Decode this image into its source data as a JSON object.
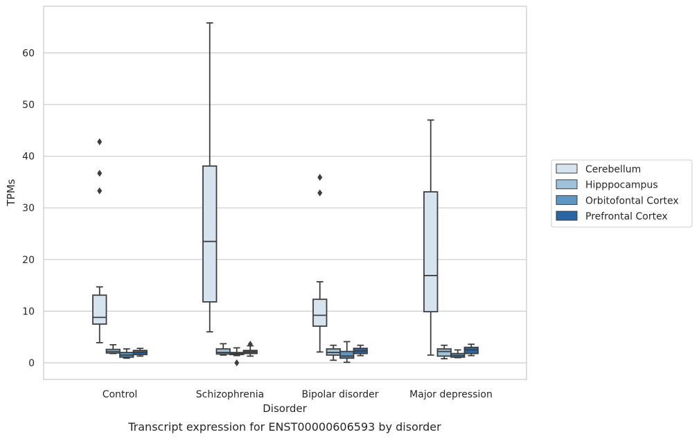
{
  "chart_data": {
    "type": "box",
    "title": "",
    "caption": "Transcript expression for ENST00000606593 by disorder",
    "xlabel": "Disorder",
    "ylabel": "TPMs",
    "ylim": [
      -3.2,
      69
    ],
    "yticks": [
      0,
      10,
      20,
      30,
      40,
      50,
      60
    ],
    "grid": "horizontal",
    "legend_position": "right",
    "categories": [
      "Control",
      "Schizophrenia",
      "Bipolar disorder",
      "Major depression"
    ],
    "series": [
      {
        "name": "Cerebellum",
        "color": "#d6e4f0",
        "boxes": [
          {
            "min": 3.9,
            "q1": 7.5,
            "median": 8.8,
            "q3": 13.1,
            "max": 14.7,
            "outliers": [
              33.3,
              36.7,
              42.8
            ]
          },
          {
            "min": 6.0,
            "q1": 11.8,
            "median": 23.5,
            "q3": 38.1,
            "max": 65.8,
            "outliers": []
          },
          {
            "min": 2.1,
            "q1": 7.1,
            "median": 9.2,
            "q3": 12.3,
            "max": 15.7,
            "outliers": [
              32.9,
              35.9
            ]
          },
          {
            "min": 1.5,
            "q1": 9.9,
            "median": 16.9,
            "q3": 33.1,
            "max": 47.0,
            "outliers": []
          }
        ]
      },
      {
        "name": "Hipppocampus",
        "color": "#9dc2da",
        "boxes": [
          {
            "min": 1.8,
            "q1": 1.9,
            "median": 2.2,
            "q3": 2.6,
            "max": 3.5,
            "outliers": []
          },
          {
            "min": 1.5,
            "q1": 1.7,
            "median": 2.0,
            "q3": 2.7,
            "max": 3.7,
            "outliers": []
          },
          {
            "min": 0.5,
            "q1": 1.5,
            "median": 2.0,
            "q3": 2.7,
            "max": 3.4,
            "outliers": []
          },
          {
            "min": 0.8,
            "q1": 1.3,
            "median": 2.2,
            "q3": 2.7,
            "max": 3.4,
            "outliers": []
          }
        ]
      },
      {
        "name": "Orbitofontal Cortex",
        "color": "#5b97c2",
        "boxes": [
          {
            "min": 0.9,
            "q1": 1.1,
            "median": 1.5,
            "q3": 2.0,
            "max": 2.7,
            "outliers": []
          },
          {
            "min": 1.4,
            "q1": 1.6,
            "median": 1.8,
            "q3": 2.0,
            "max": 2.9,
            "outliers": [
              0.0
            ]
          },
          {
            "min": 0.1,
            "q1": 0.9,
            "median": 1.3,
            "q3": 2.2,
            "max": 4.1,
            "outliers": []
          },
          {
            "min": 1.0,
            "q1": 1.1,
            "median": 1.4,
            "q3": 1.8,
            "max": 2.5,
            "outliers": []
          }
        ]
      },
      {
        "name": "Prefrontal Cortex",
        "color": "#2a66a3",
        "boxes": [
          {
            "min": 1.3,
            "q1": 1.6,
            "median": 2.0,
            "q3": 2.4,
            "max": 2.8,
            "outliers": []
          },
          {
            "min": 1.3,
            "q1": 1.8,
            "median": 2.1,
            "q3": 2.4,
            "max": 3.3,
            "outliers": [
              3.6
            ]
          },
          {
            "min": 1.4,
            "q1": 1.8,
            "median": 2.3,
            "q3": 2.8,
            "max": 3.4,
            "outliers": []
          },
          {
            "min": 1.4,
            "q1": 1.8,
            "median": 2.5,
            "q3": 3.0,
            "max": 3.6,
            "outliers": []
          }
        ]
      }
    ]
  }
}
